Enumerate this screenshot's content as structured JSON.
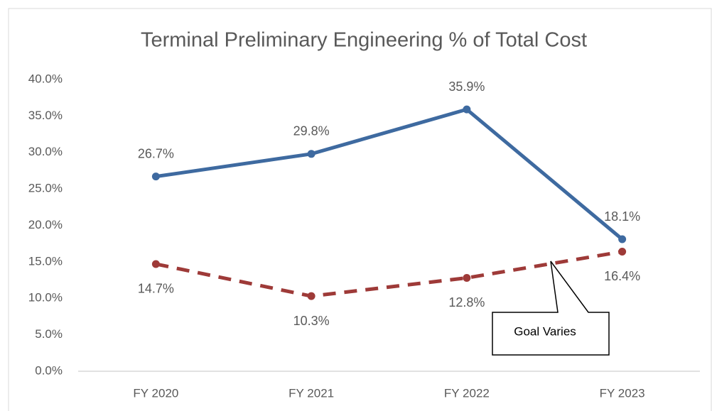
{
  "chart_data": {
    "type": "line",
    "title": "Terminal Preliminary Engineering % of Total Cost",
    "categories": [
      "FY 2020",
      "FY 2021",
      "FY 2022",
      "FY 2023"
    ],
    "series": [
      {
        "color": "#3e6aa0",
        "dashed": false,
        "values": [
          26.7,
          29.8,
          35.9,
          18.1
        ],
        "value_labels": [
          "26.7%",
          "29.8%",
          "35.9%",
          "18.1%"
        ],
        "label_position": "above"
      },
      {
        "color": "#9e3a38",
        "dashed": true,
        "values": [
          14.7,
          10.3,
          12.8,
          16.4
        ],
        "value_labels": [
          "14.7%",
          "10.3%",
          "12.8%",
          "16.4%"
        ],
        "label_position": "below"
      }
    ],
    "ylim": [
      0,
      40
    ],
    "yticks": [
      {
        "value": 0,
        "label": "0.0%"
      },
      {
        "value": 5,
        "label": "5.0%"
      },
      {
        "value": 10,
        "label": "10.0%"
      },
      {
        "value": 15,
        "label": "15.0%"
      },
      {
        "value": 20,
        "label": "20.0%"
      },
      {
        "value": 25,
        "label": "25.0%"
      },
      {
        "value": 30,
        "label": "30.0%"
      },
      {
        "value": 35,
        "label": "35.0%"
      },
      {
        "value": 40,
        "label": "40.0%"
      }
    ],
    "grid": false,
    "annotation": "Goal Varies"
  }
}
